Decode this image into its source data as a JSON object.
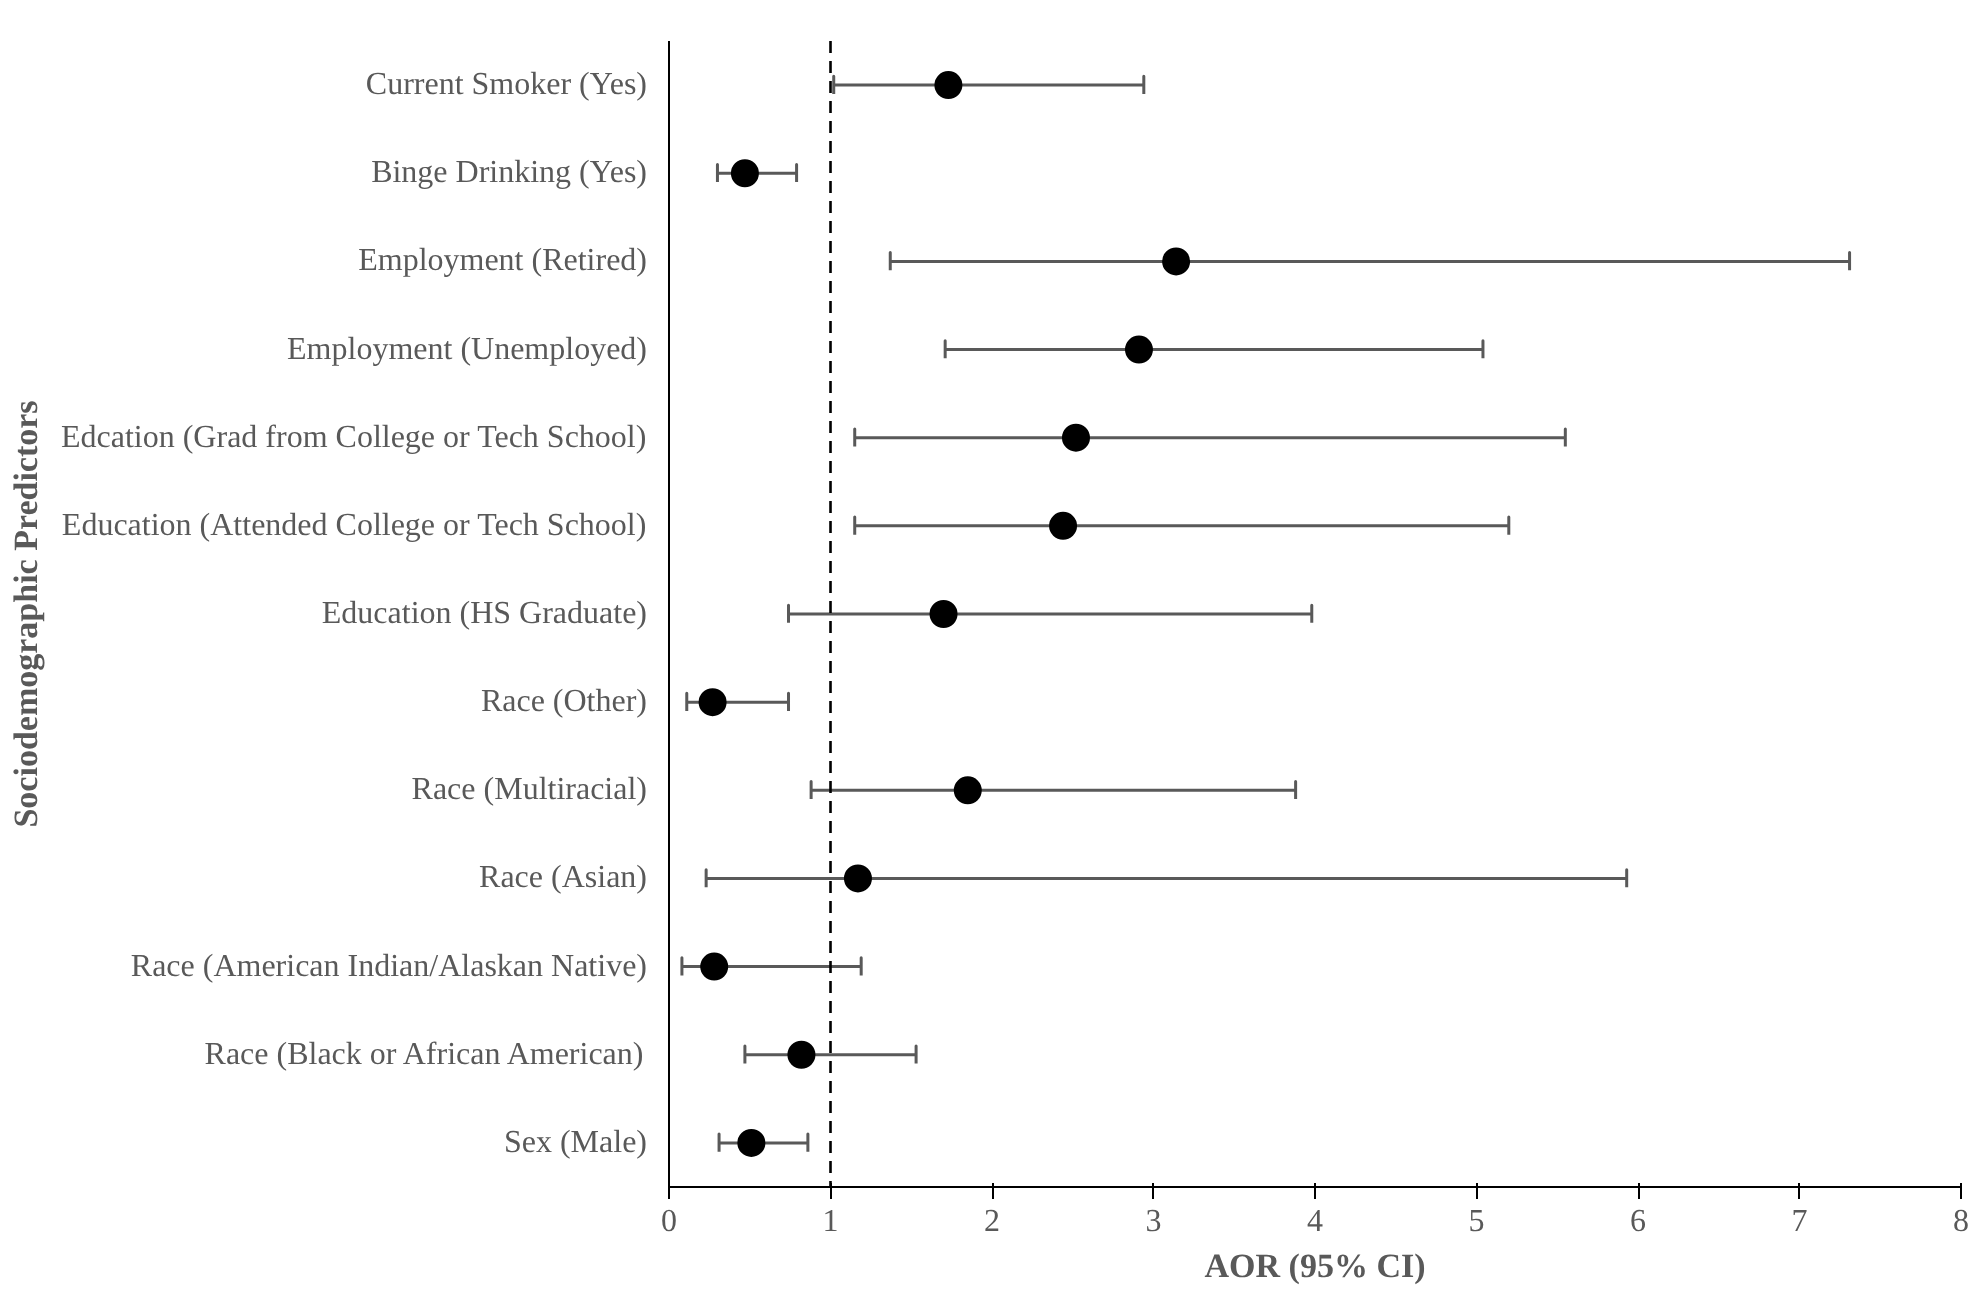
{
  "chart_data": {
    "type": "scatter",
    "orientation": "horizontal",
    "xlabel": "AOR (95% CI)",
    "ylabel": "Sociodemographic Predictors",
    "categories": [
      "Current Smoker (Yes)",
      "Binge Drinking (Yes)",
      "Employment (Retired)",
      "Employment (Unemployed)",
      "Edcation (Grad from College or Tech School)",
      "Education (Attended College or Tech School)",
      "Education (HS Graduate)",
      "Race (Other)",
      "Race (Multiracial)",
      "Race (Asian)",
      "Race (American Indian/Alaskan Native)",
      "Race (Black or African American)",
      "Sex (Male)"
    ],
    "values": [
      1.73,
      0.47,
      3.14,
      2.91,
      2.52,
      2.44,
      1.7,
      0.27,
      1.85,
      1.17,
      0.28,
      0.82,
      0.51
    ],
    "errors": [
      [
        1.02,
        2.94
      ],
      [
        0.3,
        0.79
      ],
      [
        1.37,
        7.31
      ],
      [
        1.71,
        5.04
      ],
      [
        1.15,
        5.55
      ],
      [
        1.15,
        5.2
      ],
      [
        0.74,
        3.98
      ],
      [
        0.11,
        0.74
      ],
      [
        0.88,
        3.88
      ],
      [
        0.23,
        5.93
      ],
      [
        0.08,
        1.19
      ],
      [
        0.47,
        1.53
      ],
      [
        0.31,
        0.86
      ]
    ],
    "color": "#000000",
    "marker": "circle",
    "grid": false,
    "xlim": [
      0,
      8
    ],
    "xticks": [
      0,
      1,
      2,
      3,
      4,
      5,
      6,
      7,
      8
    ],
    "ref_lines": [
      {
        "axis": "x",
        "value": 1,
        "label": null,
        "line_style": "dashed"
      }
    ]
  }
}
